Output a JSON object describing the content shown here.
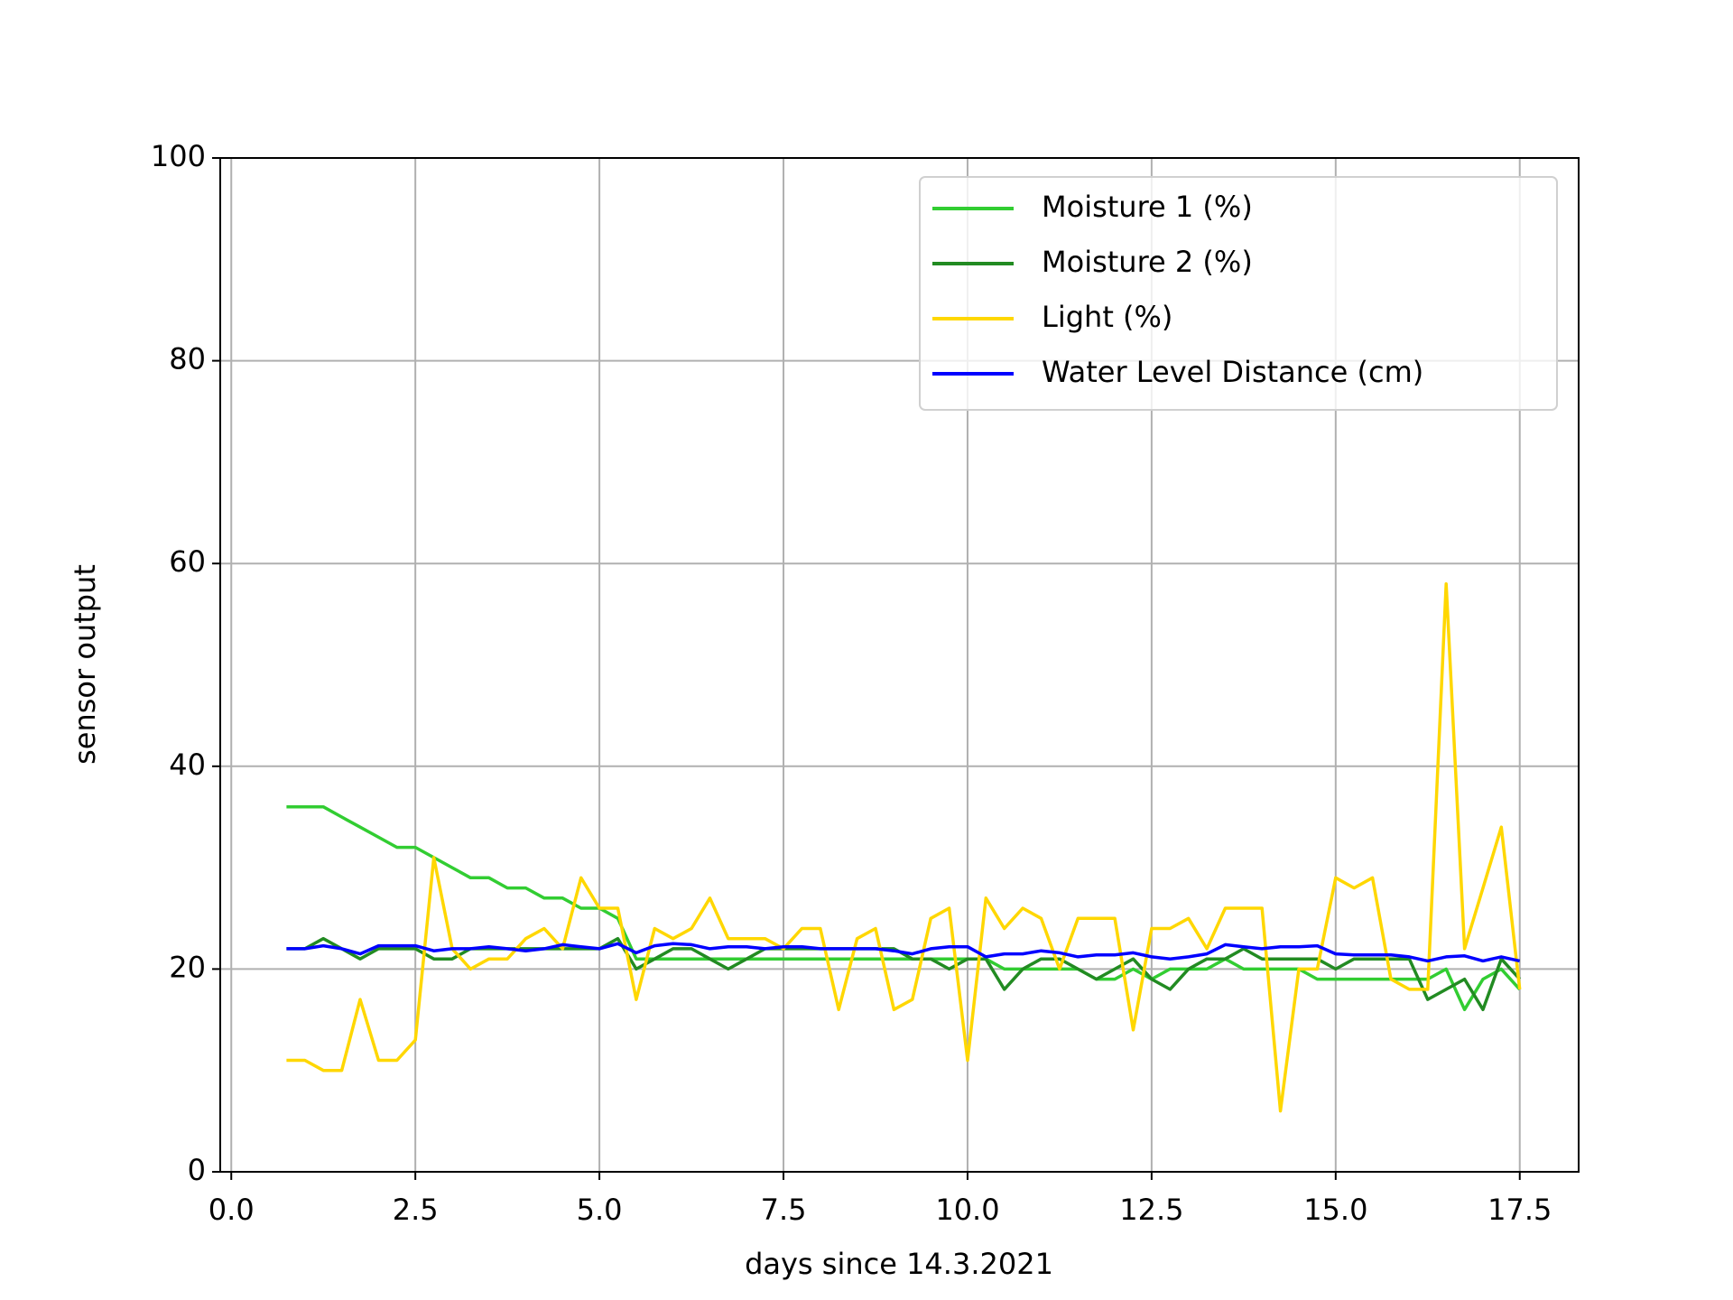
{
  "chart_data": {
    "type": "line",
    "xlabel": "days since 14.3.2021",
    "ylabel": "sensor output",
    "x": [
      0.75,
      1.0,
      1.25,
      1.5,
      1.75,
      2.0,
      2.25,
      2.5,
      2.75,
      3.0,
      3.25,
      3.5,
      3.75,
      4.0,
      4.25,
      4.5,
      4.75,
      5.0,
      5.25,
      5.5,
      5.75,
      6.0,
      6.25,
      6.5,
      6.75,
      7.0,
      7.25,
      7.5,
      7.75,
      8.0,
      8.25,
      8.5,
      8.75,
      9.0,
      9.25,
      9.5,
      9.75,
      10.0,
      10.25,
      10.5,
      10.75,
      11.0,
      11.25,
      11.5,
      11.75,
      12.0,
      12.25,
      12.5,
      12.75,
      13.0,
      13.25,
      13.5,
      13.75,
      14.0,
      14.25,
      14.5,
      14.75,
      15.0,
      15.25,
      15.5,
      15.75,
      16.0,
      16.25,
      16.5,
      16.75,
      17.0,
      17.25,
      17.5
    ],
    "series": [
      {
        "name": "Moisture 1 (%)",
        "color": "#32cd32",
        "values": [
          36,
          36,
          36,
          35,
          34,
          33,
          32,
          32,
          31,
          30,
          29,
          29,
          28,
          28,
          27,
          27,
          26,
          26,
          25,
          21,
          21,
          21,
          21,
          21,
          21,
          21,
          21,
          21,
          21,
          21,
          21,
          21,
          21,
          21,
          21,
          21,
          21,
          21,
          21,
          20,
          20,
          20,
          20,
          20,
          19,
          19,
          20,
          19,
          20,
          20,
          20,
          21,
          20,
          20,
          20,
          20,
          19,
          19,
          19,
          19,
          19,
          19,
          19,
          20,
          16,
          19,
          20,
          18
        ]
      },
      {
        "name": "Moisture 2 (%)",
        "color": "#228b22",
        "values": [
          22,
          22,
          23,
          22,
          21,
          22,
          22,
          22,
          21,
          21,
          22,
          22,
          22,
          22,
          22,
          22,
          22,
          22,
          23,
          20,
          21,
          22,
          22,
          21,
          20,
          21,
          22,
          22,
          22,
          22,
          22,
          22,
          22,
          22,
          21,
          21,
          20,
          21,
          21,
          18,
          20,
          21,
          21,
          20,
          19,
          20,
          21,
          19,
          18,
          20,
          21,
          21,
          22,
          21,
          21,
          21,
          21,
          20,
          21,
          21,
          21,
          21,
          17,
          18,
          19,
          16,
          21,
          19
        ]
      },
      {
        "name": "Light (%)",
        "color": "#ffd700",
        "values": [
          11,
          11,
          10,
          10,
          17,
          11,
          11,
          13,
          31,
          22,
          20,
          21,
          21,
          23,
          24,
          22,
          29,
          26,
          26,
          17,
          24,
          23,
          24,
          27,
          23,
          23,
          23,
          22,
          24,
          24,
          16,
          23,
          24,
          16,
          17,
          25,
          26,
          11,
          27,
          24,
          26,
          25,
          20,
          25,
          25,
          25,
          14,
          24,
          24,
          25,
          22,
          26,
          26,
          26,
          6,
          20,
          20,
          29,
          28,
          29,
          19,
          18,
          18,
          58,
          22,
          28,
          34,
          18
        ]
      },
      {
        "name": "Water Level Distance (cm)",
        "color": "#0000ff",
        "values": [
          22,
          22,
          22.3,
          22,
          21.5,
          22.3,
          22.3,
          22.3,
          21.8,
          22,
          22,
          22.2,
          22,
          21.8,
          22,
          22.4,
          22.2,
          22,
          22.5,
          21.6,
          22.3,
          22.5,
          22.4,
          22,
          22.2,
          22.2,
          22,
          22.2,
          22.2,
          22,
          22,
          22,
          22,
          21.8,
          21.5,
          22,
          22.2,
          22.2,
          21.2,
          21.5,
          21.5,
          21.8,
          21.6,
          21.2,
          21.4,
          21.4,
          21.6,
          21.2,
          21,
          21.2,
          21.5,
          22.4,
          22.2,
          22,
          22.2,
          22.2,
          22.3,
          21.5,
          21.4,
          21.4,
          21.4,
          21.2,
          20.8,
          21.2,
          21.3,
          20.8,
          21.2,
          20.8
        ]
      }
    ],
    "xlim": [
      -0.15,
      18.3
    ],
    "ylim": [
      0,
      100
    ],
    "xticks": [
      {
        "value": 0,
        "label": "0.0"
      },
      2.5,
      {
        "value": 5,
        "label": "5.0"
      },
      7.5,
      {
        "value": 10,
        "label": "10.0"
      },
      12.5,
      {
        "value": 15,
        "label": "15.0"
      },
      17.5
    ],
    "yticks": [
      0,
      20,
      40,
      60,
      80,
      100
    ],
    "grid": true,
    "legend": "upper right"
  }
}
